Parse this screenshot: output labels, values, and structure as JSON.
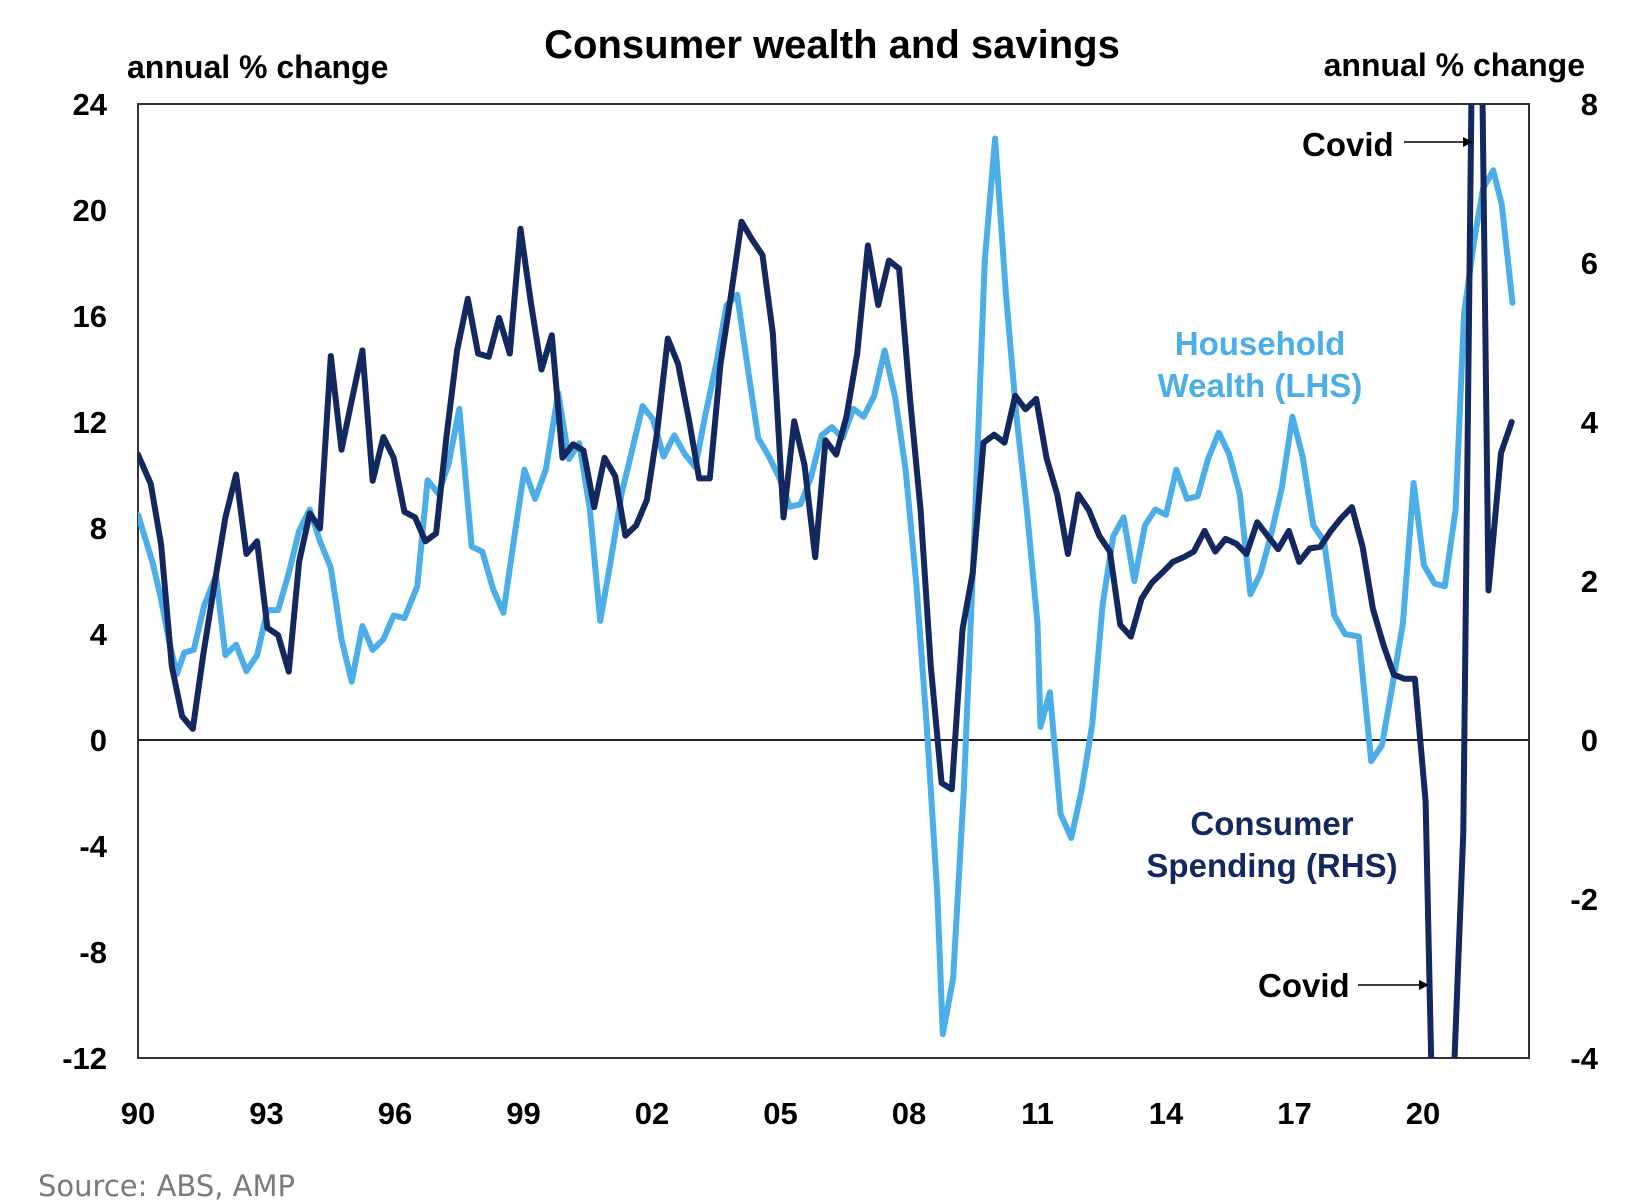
{
  "chart_data": {
    "type": "line",
    "title": "Consumer wealth and savings",
    "ylabel_left": "annual % change",
    "ylabel_right": "annual % change",
    "xlabel": "",
    "source": "Source: ABS, AMP",
    "x_ticks": [
      "90",
      "93",
      "96",
      "99",
      "02",
      "05",
      "08",
      "11",
      "14",
      "17",
      "20"
    ],
    "x_tick_years": [
      1990,
      1993,
      1996,
      1999,
      2002,
      2005,
      2008,
      2011,
      2014,
      2017,
      2020
    ],
    "xlim": [
      1990,
      2023.15
    ],
    "ylim_left": [
      -12,
      24
    ],
    "ylim_right": [
      -4,
      8
    ],
    "y_ticks_left": [
      "24",
      "20",
      "16",
      "12",
      "8",
      "4",
      "0",
      "-4",
      "-8",
      "-12"
    ],
    "y_ticks_left_values": [
      24,
      20,
      16,
      12,
      8,
      4,
      0,
      -4,
      -8,
      -12
    ],
    "y_ticks_right": [
      "8",
      "6",
      "4",
      "2",
      "0",
      "-2",
      "-4"
    ],
    "y_ticks_right_values": [
      8,
      6,
      4,
      2,
      0,
      -2,
      -4
    ],
    "grid": false,
    "zero_line": true,
    "series": [
      {
        "name": "Household Wealth (LHS)",
        "label_lines": [
          "Household",
          "Wealth (LHS)"
        ],
        "axis": "left",
        "color": "#4BAEE8",
        "points": [
          [
            1990.0,
            8.5
          ],
          [
            1990.34,
            6.7
          ],
          [
            1990.54,
            5.3
          ],
          [
            1990.74,
            3.6
          ],
          [
            1990.91,
            2.5
          ],
          [
            1991.08,
            3.3
          ],
          [
            1991.3,
            3.4
          ],
          [
            1991.55,
            5.1
          ],
          [
            1991.82,
            6.2
          ],
          [
            1992.04,
            3.2
          ],
          [
            1992.29,
            3.6
          ],
          [
            1992.53,
            2.6
          ],
          [
            1992.78,
            3.2
          ],
          [
            1993.02,
            4.9
          ],
          [
            1993.27,
            4.9
          ],
          [
            1993.52,
            6.3
          ],
          [
            1993.76,
            7.9
          ],
          [
            1994.01,
            8.7
          ],
          [
            1994.25,
            7.5
          ],
          [
            1994.5,
            6.5
          ],
          [
            1994.75,
            3.8
          ],
          [
            1994.99,
            2.2
          ],
          [
            1995.24,
            4.3
          ],
          [
            1995.48,
            3.4
          ],
          [
            1995.73,
            3.8
          ],
          [
            1995.97,
            4.7
          ],
          [
            1996.22,
            4.6
          ],
          [
            1996.52,
            5.8
          ],
          [
            1996.76,
            9.8
          ],
          [
            1997.01,
            9.3
          ],
          [
            1997.25,
            10.4
          ],
          [
            1997.5,
            12.5
          ],
          [
            1997.79,
            7.3
          ],
          [
            1998.04,
            7.1
          ],
          [
            1998.29,
            5.7
          ],
          [
            1998.53,
            4.8
          ],
          [
            1998.78,
            7.6
          ],
          [
            1999.02,
            10.2
          ],
          [
            1999.27,
            9.1
          ],
          [
            1999.52,
            10.2
          ],
          [
            1999.81,
            13.1
          ],
          [
            2000.06,
            10.6
          ],
          [
            2000.3,
            11.2
          ],
          [
            2000.55,
            8.7
          ],
          [
            2000.79,
            4.5
          ],
          [
            2001.04,
            6.8
          ],
          [
            2001.29,
            9.3
          ],
          [
            2001.53,
            10.9
          ],
          [
            2001.78,
            12.6
          ],
          [
            2002.02,
            12.1
          ],
          [
            2002.27,
            10.7
          ],
          [
            2002.52,
            11.5
          ],
          [
            2002.76,
            10.8
          ],
          [
            2003.01,
            10.3
          ],
          [
            2003.25,
            12.3
          ],
          [
            2003.5,
            14.2
          ],
          [
            2003.74,
            16.4
          ],
          [
            2003.99,
            16.8
          ],
          [
            2004.24,
            14.0
          ],
          [
            2004.48,
            11.4
          ],
          [
            2004.73,
            10.7
          ],
          [
            2004.97,
            9.9
          ],
          [
            2005.22,
            8.8
          ],
          [
            2005.47,
            8.9
          ],
          [
            2005.71,
            9.9
          ],
          [
            2005.96,
            11.5
          ],
          [
            2006.2,
            11.8
          ],
          [
            2006.45,
            11.4
          ],
          [
            2006.7,
            12.5
          ],
          [
            2006.94,
            12.2
          ],
          [
            2007.19,
            13.0
          ],
          [
            2007.43,
            14.7
          ],
          [
            2007.68,
            12.9
          ],
          [
            2007.92,
            10.2
          ],
          [
            2008.17,
            5.9
          ],
          [
            2008.42,
            0.4
          ],
          [
            2008.66,
            -5.8
          ],
          [
            2008.79,
            -11.1
          ],
          [
            2009.03,
            -9.0
          ],
          [
            2009.28,
            -1.9
          ],
          [
            2009.52,
            7.5
          ],
          [
            2009.77,
            18.1
          ],
          [
            2010.01,
            22.7
          ],
          [
            2010.26,
            16.9
          ],
          [
            2010.51,
            12.2
          ],
          [
            2010.75,
            8.7
          ],
          [
            2011.0,
            4.4
          ],
          [
            2011.07,
            0.5
          ],
          [
            2011.29,
            1.8
          ],
          [
            2011.54,
            -2.8
          ],
          [
            2011.79,
            -3.7
          ],
          [
            2012.03,
            -1.9
          ],
          [
            2012.28,
            0.6
          ],
          [
            2012.52,
            5.1
          ],
          [
            2012.77,
            7.7
          ],
          [
            2013.01,
            8.4
          ],
          [
            2013.26,
            6.0
          ],
          [
            2013.51,
            8.1
          ],
          [
            2013.75,
            8.7
          ],
          [
            2014.0,
            8.5
          ],
          [
            2014.24,
            10.2
          ],
          [
            2014.49,
            9.1
          ],
          [
            2014.74,
            9.2
          ],
          [
            2014.98,
            10.6
          ],
          [
            2015.23,
            11.6
          ],
          [
            2015.47,
            10.8
          ],
          [
            2015.72,
            9.3
          ],
          [
            2015.97,
            5.5
          ],
          [
            2016.21,
            6.3
          ],
          [
            2016.46,
            7.8
          ],
          [
            2016.7,
            9.5
          ],
          [
            2016.95,
            12.2
          ],
          [
            2017.19,
            10.7
          ],
          [
            2017.44,
            8.1
          ],
          [
            2017.69,
            7.5
          ],
          [
            2017.93,
            4.7
          ],
          [
            2018.18,
            4.0
          ],
          [
            2018.5,
            3.9
          ],
          [
            2018.79,
            -0.8
          ],
          [
            2019.04,
            -0.2
          ],
          [
            2019.28,
            2.0
          ],
          [
            2019.53,
            4.4
          ],
          [
            2019.78,
            9.7
          ],
          [
            2020.02,
            6.6
          ],
          [
            2020.27,
            5.9
          ],
          [
            2020.51,
            5.8
          ],
          [
            2020.76,
            8.7
          ],
          [
            2020.96,
            16.1
          ],
          [
            2021.2,
            18.9
          ],
          [
            2021.4,
            20.8
          ],
          [
            2021.64,
            21.5
          ],
          [
            2021.84,
            20.2
          ],
          [
            2022.09,
            16.5
          ]
        ]
      },
      {
        "name": "Consumer Spending (RHS)",
        "label_lines": [
          "Consumer",
          "Spending (RHS)"
        ],
        "axis": "right",
        "color": "#13285E",
        "points": [
          [
            1990.0,
            3.59
          ],
          [
            1990.3,
            3.22
          ],
          [
            1990.54,
            2.46
          ],
          [
            1990.79,
            0.93
          ],
          [
            1991.03,
            0.3
          ],
          [
            1991.28,
            0.14
          ],
          [
            1991.52,
            1.06
          ],
          [
            1991.79,
            1.98
          ],
          [
            1992.04,
            2.8
          ],
          [
            1992.29,
            3.34
          ],
          [
            1992.53,
            2.34
          ],
          [
            1992.78,
            2.5
          ],
          [
            1993.02,
            1.41
          ],
          [
            1993.27,
            1.32
          ],
          [
            1993.52,
            0.86
          ],
          [
            1993.76,
            2.24
          ],
          [
            1994.01,
            2.85
          ],
          [
            1994.25,
            2.66
          ],
          [
            1994.5,
            4.83
          ],
          [
            1994.75,
            3.65
          ],
          [
            1994.99,
            4.27
          ],
          [
            1995.24,
            4.9
          ],
          [
            1995.48,
            3.26
          ],
          [
            1995.73,
            3.81
          ],
          [
            1995.97,
            3.55
          ],
          [
            1996.22,
            2.87
          ],
          [
            1996.47,
            2.8
          ],
          [
            1996.71,
            2.5
          ],
          [
            1996.96,
            2.6
          ],
          [
            1997.2,
            3.81
          ],
          [
            1997.45,
            4.9
          ],
          [
            1997.7,
            5.55
          ],
          [
            1997.94,
            4.86
          ],
          [
            1998.19,
            4.82
          ],
          [
            1998.43,
            5.31
          ],
          [
            1998.68,
            4.86
          ],
          [
            1998.93,
            6.43
          ],
          [
            1999.17,
            5.51
          ],
          [
            1999.42,
            4.66
          ],
          [
            1999.66,
            5.09
          ],
          [
            1999.91,
            3.55
          ],
          [
            2000.16,
            3.72
          ],
          [
            2000.4,
            3.64
          ],
          [
            2000.65,
            2.93
          ],
          [
            2000.89,
            3.55
          ],
          [
            2001.14,
            3.32
          ],
          [
            2001.38,
            2.57
          ],
          [
            2001.63,
            2.7
          ],
          [
            2001.88,
            3.02
          ],
          [
            2002.12,
            3.87
          ],
          [
            2002.37,
            5.05
          ],
          [
            2002.61,
            4.73
          ],
          [
            2002.86,
            4.04
          ],
          [
            2003.1,
            3.29
          ],
          [
            2003.35,
            3.29
          ],
          [
            2003.6,
            4.73
          ],
          [
            2003.84,
            5.58
          ],
          [
            2004.09,
            6.52
          ],
          [
            2004.33,
            6.3
          ],
          [
            2004.58,
            6.1
          ],
          [
            2004.82,
            5.12
          ],
          [
            2005.07,
            2.8
          ],
          [
            2005.32,
            4.01
          ],
          [
            2005.56,
            3.46
          ],
          [
            2005.81,
            2.3
          ],
          [
            2006.05,
            3.77
          ],
          [
            2006.3,
            3.59
          ],
          [
            2006.54,
            4.07
          ],
          [
            2006.79,
            4.86
          ],
          [
            2007.04,
            6.22
          ],
          [
            2007.28,
            5.47
          ],
          [
            2007.53,
            6.03
          ],
          [
            2007.77,
            5.93
          ],
          [
            2008.02,
            4.31
          ],
          [
            2008.27,
            2.89
          ],
          [
            2008.51,
            0.93
          ],
          [
            2008.76,
            -0.54
          ],
          [
            2009.0,
            -0.62
          ],
          [
            2009.25,
            1.39
          ],
          [
            2009.49,
            2.11
          ],
          [
            2009.74,
            3.74
          ],
          [
            2009.99,
            3.84
          ],
          [
            2010.23,
            3.74
          ],
          [
            2010.48,
            4.33
          ],
          [
            2010.72,
            4.16
          ],
          [
            2010.97,
            4.29
          ],
          [
            2011.21,
            3.55
          ],
          [
            2011.46,
            3.09
          ],
          [
            2011.71,
            2.34
          ],
          [
            2011.95,
            3.09
          ],
          [
            2012.2,
            2.89
          ],
          [
            2012.44,
            2.57
          ],
          [
            2012.69,
            2.37
          ],
          [
            2012.93,
            1.45
          ],
          [
            2013.18,
            1.3
          ],
          [
            2013.43,
            1.78
          ],
          [
            2013.67,
            1.98
          ],
          [
            2013.92,
            2.11
          ],
          [
            2014.16,
            2.24
          ],
          [
            2014.41,
            2.3
          ],
          [
            2014.65,
            2.37
          ],
          [
            2014.9,
            2.63
          ],
          [
            2015.15,
            2.37
          ],
          [
            2015.39,
            2.53
          ],
          [
            2015.64,
            2.47
          ],
          [
            2015.88,
            2.34
          ],
          [
            2016.13,
            2.74
          ],
          [
            2016.37,
            2.57
          ],
          [
            2016.62,
            2.4
          ],
          [
            2016.87,
            2.63
          ],
          [
            2017.11,
            2.24
          ],
          [
            2017.36,
            2.41
          ],
          [
            2017.6,
            2.43
          ],
          [
            2017.85,
            2.63
          ],
          [
            2018.09,
            2.79
          ],
          [
            2018.34,
            2.93
          ],
          [
            2018.59,
            2.43
          ],
          [
            2018.83,
            1.65
          ],
          [
            2019.08,
            1.19
          ],
          [
            2019.32,
            0.82
          ],
          [
            2019.57,
            0.77
          ],
          [
            2019.81,
            0.77
          ],
          [
            2020.06,
            -0.77
          ],
          [
            2020.21,
            -4.5
          ],
          [
            2020.7,
            -4.5
          ],
          [
            2020.94,
            -1.16
          ],
          [
            2021.14,
            8.5
          ],
          [
            2021.38,
            8.5
          ],
          [
            2021.53,
            1.88
          ],
          [
            2021.82,
            3.61
          ],
          [
            2022.07,
            4.0
          ]
        ],
        "note": "Covid-period values in 2020-21 extend beyond the RHS axis range and are clipped at the plot edge"
      }
    ],
    "annotations": [
      {
        "text": "Covid",
        "points_to": "spending spike above chart (2021)",
        "position": "top-right"
      },
      {
        "text": "Covid",
        "points_to": "spending drop below chart (2020)",
        "position": "bottom-right"
      }
    ]
  }
}
